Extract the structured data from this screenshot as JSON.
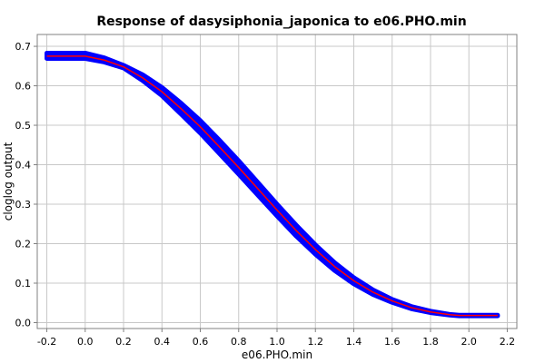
{
  "chart_data": {
    "type": "line",
    "title": "Response of dasysiphonia_japonica to e06.PHO.min",
    "xlabel": "e06.PHO.min",
    "ylabel": "cloglog output",
    "xlim": [
      -0.25,
      2.25
    ],
    "ylim": [
      -0.015,
      0.73
    ],
    "x_ticks": [
      -0.2,
      0.0,
      0.2,
      0.4,
      0.6,
      0.8,
      1.0,
      1.2,
      1.4,
      1.6,
      1.8,
      2.0,
      2.2
    ],
    "x_tick_labels": [
      "-0.2",
      "0.0",
      "0.2",
      "0.4",
      "0.6",
      "0.8",
      "1.0",
      "1.2",
      "1.4",
      "1.6",
      "1.8",
      "2.0",
      "2.2"
    ],
    "y_ticks": [
      0.0,
      0.1,
      0.2,
      0.3,
      0.4,
      0.5,
      0.6,
      0.7
    ],
    "y_tick_labels": [
      "0.0",
      "0.1",
      "0.2",
      "0.3",
      "0.4",
      "0.5",
      "0.6",
      "0.7"
    ],
    "grid": true,
    "legend": "none",
    "colors": {
      "band": "#0000ff",
      "mean": "#ff0000",
      "grid": "#c8c8c8"
    },
    "series": [
      {
        "role": "mean",
        "x": [
          -0.2,
          0.0,
          0.1,
          0.2,
          0.3,
          0.4,
          0.5,
          0.6,
          0.7,
          0.8,
          0.9,
          1.0,
          1.1,
          1.2,
          1.3,
          1.4,
          1.5,
          1.6,
          1.7,
          1.8,
          1.9,
          1.95,
          2.15
        ],
        "y": [
          0.675,
          0.675,
          0.665,
          0.648,
          0.62,
          0.585,
          0.542,
          0.496,
          0.445,
          0.393,
          0.339,
          0.285,
          0.233,
          0.185,
          0.142,
          0.106,
          0.077,
          0.055,
          0.038,
          0.027,
          0.02,
          0.018,
          0.018
        ]
      },
      {
        "role": "band_upper",
        "x": [
          -0.2,
          0.0,
          0.1,
          0.2,
          0.3,
          0.4,
          0.5,
          0.6,
          0.7,
          0.8,
          0.9,
          1.0,
          1.1,
          1.2,
          1.3,
          1.4,
          1.5,
          1.6,
          1.7,
          1.8,
          1.9,
          1.95,
          2.15
        ],
        "y": [
          0.683,
          0.683,
          0.671,
          0.652,
          0.628,
          0.596,
          0.556,
          0.512,
          0.462,
          0.41,
          0.355,
          0.3,
          0.247,
          0.197,
          0.152,
          0.114,
          0.083,
          0.059,
          0.041,
          0.029,
          0.021,
          0.019,
          0.019
        ]
      },
      {
        "role": "band_lower",
        "x": [
          -0.2,
          0.0,
          0.1,
          0.2,
          0.3,
          0.4,
          0.5,
          0.6,
          0.7,
          0.8,
          0.9,
          1.0,
          1.1,
          1.2,
          1.3,
          1.4,
          1.5,
          1.6,
          1.7,
          1.8,
          1.9,
          1.95,
          2.15
        ],
        "y": [
          0.669,
          0.669,
          0.66,
          0.645,
          0.613,
          0.575,
          0.528,
          0.48,
          0.428,
          0.376,
          0.323,
          0.27,
          0.219,
          0.173,
          0.132,
          0.098,
          0.071,
          0.051,
          0.035,
          0.025,
          0.019,
          0.017,
          0.017
        ]
      }
    ]
  }
}
